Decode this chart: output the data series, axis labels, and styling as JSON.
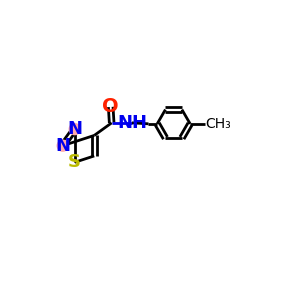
{
  "bg_color": "#ffffff",
  "bond_color": "#000000",
  "bond_width": 2.0,
  "atom_colors": {
    "N": "#0000ee",
    "O": "#ff2200",
    "S": "#bbbb00",
    "C": "#000000"
  },
  "N_bg_color": "#ffaaaa",
  "font_size_N": 13,
  "font_size_O": 14,
  "font_size_S": 13,
  "font_size_NH": 13
}
